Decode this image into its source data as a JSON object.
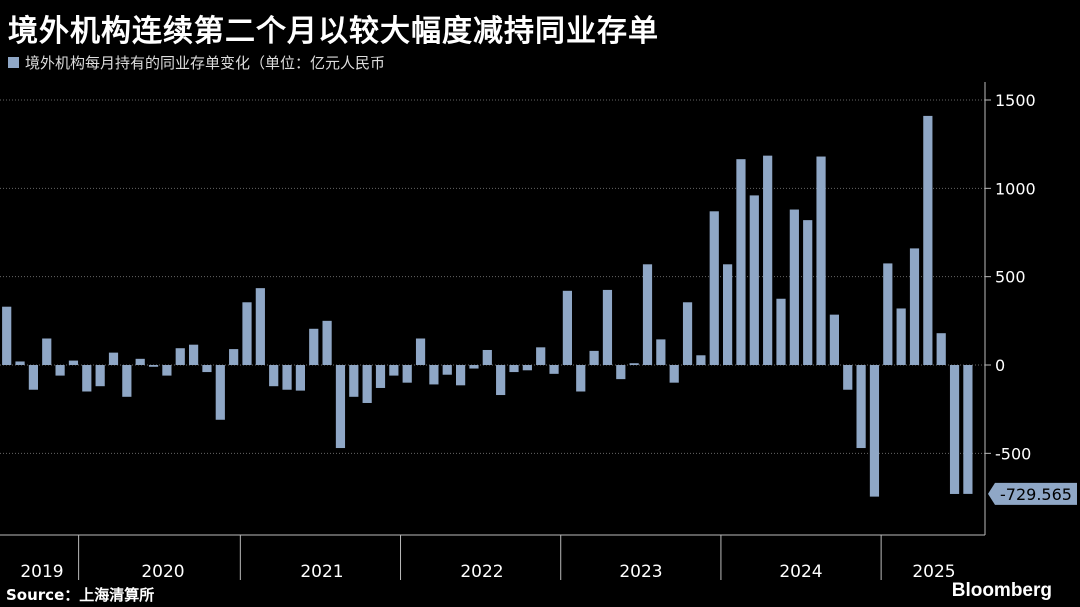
{
  "title": "境外机构连续第二个月以较大幅度减持同业存单",
  "source": "Source：上海清算所",
  "brand": "Bloomberg",
  "colors": {
    "bar": "#8fa7c6",
    "background": "#000000",
    "grid": "#666666"
  },
  "chart_data": {
    "type": "bar",
    "series_name": "境外机构每月持有的同业存单变化（单位：亿元人民币",
    "ylim": [
      -800,
      1600
    ],
    "yticks": [
      1500,
      1000,
      500,
      0,
      -500
    ],
    "grid": true,
    "years": [
      "2019",
      "2020",
      "2021",
      "2022",
      "2023",
      "2024",
      "2025"
    ],
    "last_value_label": "-729.565",
    "values": [
      330,
      20,
      -140,
      150,
      -60,
      25,
      -150,
      -120,
      70,
      -180,
      35,
      -10,
      -60,
      95,
      115,
      -40,
      -310,
      90,
      355,
      435,
      -120,
      -140,
      -145,
      205,
      250,
      -470,
      -180,
      -215,
      -130,
      -60,
      -100,
      150,
      -110,
      -55,
      -115,
      -20,
      85,
      -170,
      -40,
      -30,
      100,
      -50,
      420,
      -150,
      80,
      425,
      -80,
      10,
      570,
      145,
      -100,
      355,
      55,
      870,
      570,
      1165,
      960,
      1185,
      375,
      880,
      820,
      1180,
      285,
      -140,
      -470,
      -745,
      575,
      320,
      660,
      1410,
      180,
      -730,
      -729.565
    ]
  }
}
